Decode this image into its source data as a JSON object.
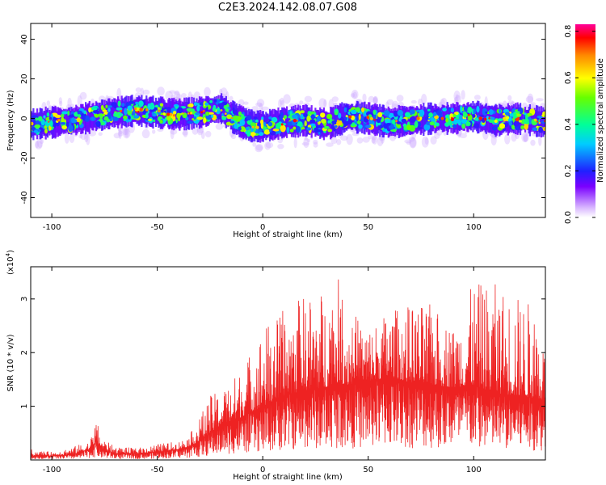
{
  "title": "C2E3.2024.142.08.07.G08",
  "colors": {
    "snr_line": "#ee2222",
    "axes": "#000000",
    "background": "#ffffff"
  },
  "chart_data": [
    {
      "type": "heatmap",
      "xlabel": "Height of straight line (km)",
      "ylabel": "Frequency (Hz)",
      "xlim": [
        -110,
        134
      ],
      "ylim": [
        -50,
        48
      ],
      "x_ticks": [
        -100,
        -50,
        0,
        50,
        100
      ],
      "x_tick_labels": [
        "-100",
        "-50",
        "0",
        "50",
        "100"
      ],
      "y_ticks": [
        -40,
        -20,
        0,
        20,
        40
      ],
      "y_tick_labels": [
        "-40",
        "-20",
        "0",
        "20",
        "40"
      ],
      "colorbar": {
        "label": "Normalized spectral amplitude",
        "range": [
          0,
          0.83
        ],
        "ticks": [
          0,
          0.2,
          0.4,
          0.6,
          0.8
        ],
        "tick_labels": [
          "0.0",
          "0.2",
          "0.4",
          "0.6",
          "0.8"
        ]
      },
      "center_frequency_track": {
        "x": [
          -110,
          -100,
          -90,
          -80,
          -70,
          -60,
          -50,
          -40,
          -30,
          -20,
          -15,
          -10,
          -5,
          0,
          5,
          10,
          20,
          30,
          40,
          50,
          60,
          70,
          80,
          90,
          100,
          110,
          120,
          134
        ],
        "y": [
          -3,
          -2,
          -1,
          1,
          3,
          4,
          3,
          2,
          3,
          5,
          1,
          -2,
          -4,
          -4,
          -3,
          -2,
          -1,
          -3,
          1,
          0,
          -2,
          -1,
          0,
          0,
          1,
          -1,
          0,
          -2
        ]
      },
      "band_half_width_hz": 7
    },
    {
      "type": "line",
      "xlabel": "Height of straight line (km)",
      "ylabel": "SNR (10 * v/v)",
      "y_scale_label": "(x10",
      "y_scale_exponent": "4",
      "y_scale_close": ")",
      "xlim": [
        -110,
        134
      ],
      "ylim": [
        0,
        3.6
      ],
      "x_ticks": [
        -100,
        -50,
        0,
        50,
        100
      ],
      "x_tick_labels": [
        "-100",
        "-50",
        "0",
        "50",
        "100"
      ],
      "y_ticks": [
        1,
        2,
        3
      ],
      "y_tick_labels": [
        "1",
        "2",
        "3"
      ],
      "envelope": {
        "x": [
          -110,
          -100,
          -90,
          -82,
          -79,
          -76,
          -70,
          -60,
          -50,
          -40,
          -35,
          -30,
          -25,
          -20,
          -10,
          0,
          10,
          20,
          30,
          34,
          40,
          50,
          60,
          70,
          80,
          90,
          100,
          110,
          120,
          130,
          134
        ],
        "mean": [
          0.08,
          0.08,
          0.1,
          0.2,
          0.35,
          0.2,
          0.12,
          0.12,
          0.15,
          0.2,
          0.25,
          0.35,
          0.5,
          0.65,
          0.8,
          1.0,
          1.2,
          1.3,
          1.35,
          1.45,
          1.4,
          1.45,
          1.55,
          1.45,
          1.4,
          1.35,
          1.4,
          1.25,
          1.2,
          1.15,
          1.1
        ],
        "peak": [
          0.2,
          0.15,
          0.25,
          0.35,
          0.75,
          0.4,
          0.25,
          0.22,
          0.3,
          0.35,
          0.45,
          0.8,
          1.2,
          1.3,
          1.7,
          2.5,
          2.8,
          3.1,
          3.2,
          3.6,
          2.9,
          2.5,
          2.8,
          2.9,
          2.9,
          2.5,
          3.3,
          3.3,
          3.1,
          2.9,
          2.0
        ]
      }
    }
  ]
}
